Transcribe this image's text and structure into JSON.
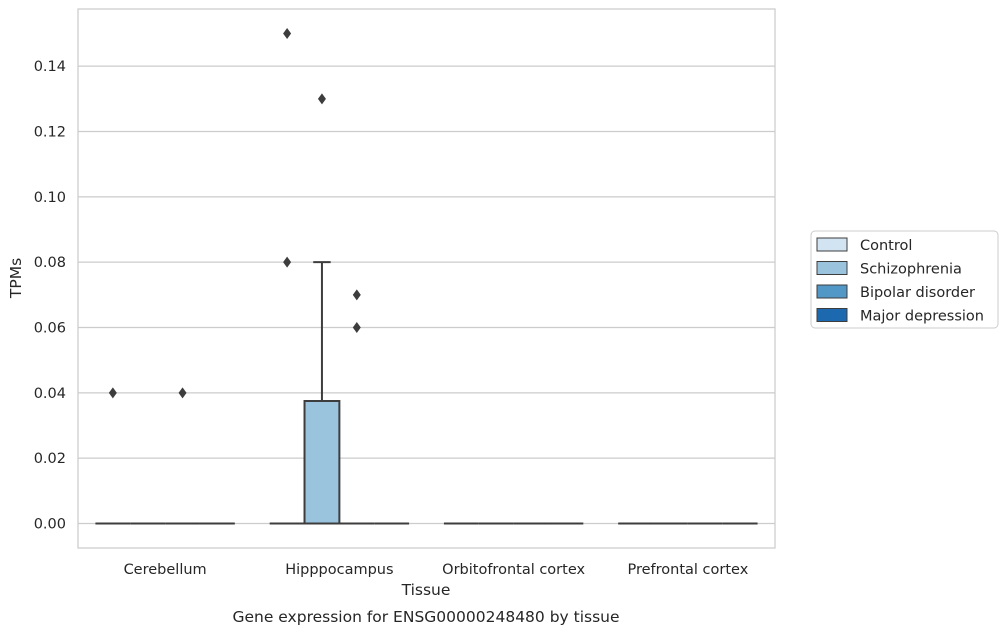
{
  "chart_data": {
    "type": "box",
    "xlabel": "Tissue",
    "ylabel": "TPMs",
    "caption": "Gene expression for ENSG00000248480 by tissue",
    "categories": [
      "Cerebellum",
      "Hipppocampus",
      "Orbitofrontal cortex",
      "Prefrontal cortex"
    ],
    "ylim": [
      -0.0075,
      0.1575
    ],
    "yticks": [
      0.0,
      0.02,
      0.04,
      0.06,
      0.08,
      0.1,
      0.12,
      0.14
    ],
    "ytick_labels": [
      "0.00",
      "0.02",
      "0.04",
      "0.06",
      "0.08",
      "0.10",
      "0.12",
      "0.14"
    ],
    "grid": true,
    "legend_position": "right",
    "series": [
      {
        "name": "Control",
        "color": "#d2e3f2",
        "boxes": [
          {
            "q1": 0,
            "median": 0,
            "q3": 0,
            "whisker_low": 0,
            "whisker_high": 0,
            "outliers": [
              0.04
            ]
          },
          {
            "q1": 0,
            "median": 0,
            "q3": 0,
            "whisker_low": 0,
            "whisker_high": 0,
            "outliers": [
              0.08,
              0.15
            ]
          },
          {
            "q1": 0,
            "median": 0,
            "q3": 0,
            "whisker_low": 0,
            "whisker_high": 0,
            "outliers": []
          },
          {
            "q1": 0,
            "median": 0,
            "q3": 0,
            "whisker_low": 0,
            "whisker_high": 0,
            "outliers": []
          }
        ]
      },
      {
        "name": "Schizophrenia",
        "color": "#9ac4de",
        "boxes": [
          {
            "q1": 0,
            "median": 0,
            "q3": 0,
            "whisker_low": 0,
            "whisker_high": 0,
            "outliers": []
          },
          {
            "q1": 0,
            "median": 0,
            "q3": 0.0375,
            "whisker_low": 0,
            "whisker_high": 0.08,
            "outliers": [
              0.13
            ]
          },
          {
            "q1": 0,
            "median": 0,
            "q3": 0,
            "whisker_low": 0,
            "whisker_high": 0,
            "outliers": []
          },
          {
            "q1": 0,
            "median": 0,
            "q3": 0,
            "whisker_low": 0,
            "whisker_high": 0,
            "outliers": []
          }
        ]
      },
      {
        "name": "Bipolar disorder",
        "color": "#5198c6",
        "boxes": [
          {
            "q1": 0,
            "median": 0,
            "q3": 0,
            "whisker_low": 0,
            "whisker_high": 0,
            "outliers": [
              0.04
            ]
          },
          {
            "q1": 0,
            "median": 0,
            "q3": 0,
            "whisker_low": 0,
            "whisker_high": 0,
            "outliers": [
              0.06,
              0.07
            ]
          },
          {
            "q1": 0,
            "median": 0,
            "q3": 0,
            "whisker_low": 0,
            "whisker_high": 0,
            "outliers": []
          },
          {
            "q1": 0,
            "median": 0,
            "q3": 0,
            "whisker_low": 0,
            "whisker_high": 0,
            "outliers": []
          }
        ]
      },
      {
        "name": "Major depression",
        "color": "#1d69af",
        "boxes": [
          {
            "q1": 0,
            "median": 0,
            "q3": 0,
            "whisker_low": 0,
            "whisker_high": 0,
            "outliers": []
          },
          {
            "q1": 0,
            "median": 0,
            "q3": 0,
            "whisker_low": 0,
            "whisker_high": 0,
            "outliers": []
          },
          {
            "q1": 0,
            "median": 0,
            "q3": 0,
            "whisker_low": 0,
            "whisker_high": 0,
            "outliers": []
          },
          {
            "q1": 0,
            "median": 0,
            "q3": 0,
            "whisker_low": 0,
            "whisker_high": 0,
            "outliers": []
          }
        ]
      }
    ]
  }
}
